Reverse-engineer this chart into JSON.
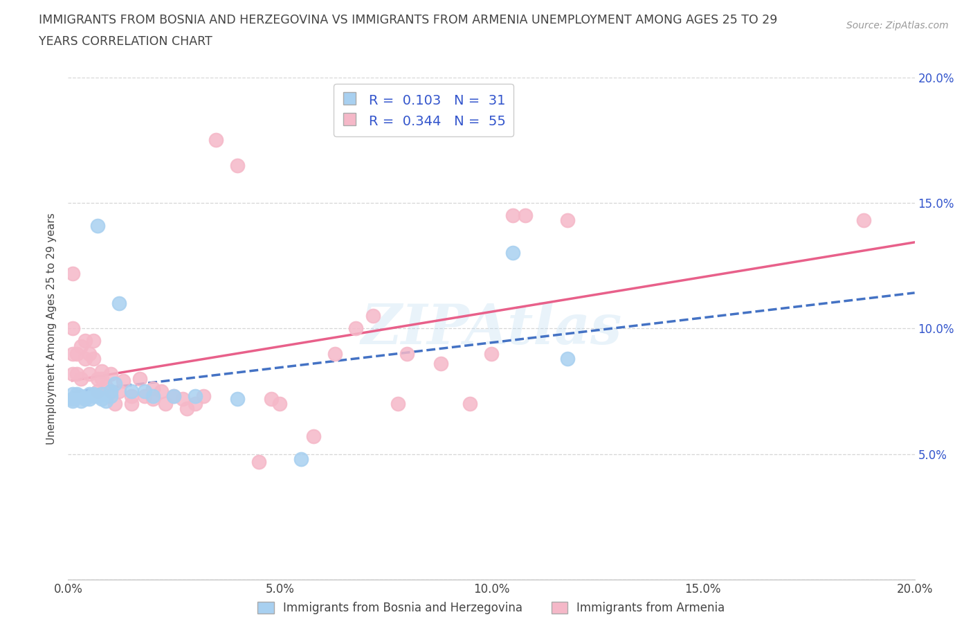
{
  "title_line1": "IMMIGRANTS FROM BOSNIA AND HERZEGOVINA VS IMMIGRANTS FROM ARMENIA UNEMPLOYMENT AMONG AGES 25 TO 29",
  "title_line2": "YEARS CORRELATION CHART",
  "source": "Source: ZipAtlas.com",
  "ylabel": "Unemployment Among Ages 25 to 29 years",
  "xlim": [
    0.0,
    0.2
  ],
  "ylim": [
    0.0,
    0.2
  ],
  "xticks": [
    0.0,
    0.05,
    0.1,
    0.15,
    0.2
  ],
  "yticks": [
    0.0,
    0.05,
    0.1,
    0.15,
    0.2
  ],
  "xtick_labels": [
    "0.0%",
    "5.0%",
    "10.0%",
    "15.0%",
    "20.0%"
  ],
  "ytick_labels_right": [
    "",
    "5.0%",
    "10.0%",
    "15.0%",
    "20.0%"
  ],
  "watermark": "ZIPAtlas",
  "bosnia_color": "#A8D0F0",
  "armenia_color": "#F5B8C8",
  "bosnia_line_color": "#4472C4",
  "armenia_line_color": "#E8608A",
  "legend_text_color": "#3355CC",
  "bosnia_R": 0.103,
  "bosnia_N": 31,
  "armenia_R": 0.344,
  "armenia_N": 55,
  "legend_label_1": "Immigrants from Bosnia and Herzegovina",
  "legend_label_2": "Immigrants from Armenia",
  "grid_color": "#CCCCCC",
  "background_color": "#FFFFFF",
  "text_color": "#444444",
  "bosnia_x": [
    0.001,
    0.001,
    0.001,
    0.001,
    0.002,
    0.002,
    0.003,
    0.003,
    0.004,
    0.005,
    0.005,
    0.006,
    0.006,
    0.007,
    0.007,
    0.008,
    0.008,
    0.009,
    0.01,
    0.01,
    0.011,
    0.012,
    0.015,
    0.018,
    0.02,
    0.025,
    0.03,
    0.04,
    0.055,
    0.105,
    0.118
  ],
  "bosnia_y": [
    0.072,
    0.074,
    0.072,
    0.071,
    0.073,
    0.074,
    0.071,
    0.073,
    0.072,
    0.072,
    0.074,
    0.074,
    0.073,
    0.141,
    0.073,
    0.072,
    0.074,
    0.071,
    0.073,
    0.075,
    0.078,
    0.11,
    0.075,
    0.075,
    0.073,
    0.073,
    0.073,
    0.072,
    0.048,
    0.13,
    0.088
  ],
  "armenia_x": [
    0.001,
    0.001,
    0.001,
    0.001,
    0.002,
    0.002,
    0.003,
    0.003,
    0.004,
    0.004,
    0.005,
    0.005,
    0.006,
    0.006,
    0.007,
    0.007,
    0.008,
    0.008,
    0.009,
    0.01,
    0.01,
    0.011,
    0.012,
    0.013,
    0.015,
    0.015,
    0.017,
    0.018,
    0.02,
    0.02,
    0.022,
    0.023,
    0.025,
    0.027,
    0.028,
    0.03,
    0.032,
    0.035,
    0.04,
    0.045,
    0.048,
    0.05,
    0.058,
    0.063,
    0.068,
    0.072,
    0.078,
    0.08,
    0.088,
    0.095,
    0.1,
    0.105,
    0.108,
    0.118,
    0.188
  ],
  "armenia_y": [
    0.122,
    0.1,
    0.09,
    0.082,
    0.09,
    0.082,
    0.093,
    0.08,
    0.088,
    0.095,
    0.09,
    0.082,
    0.088,
    0.095,
    0.075,
    0.08,
    0.083,
    0.08,
    0.077,
    0.082,
    0.075,
    0.07,
    0.075,
    0.079,
    0.07,
    0.073,
    0.08,
    0.073,
    0.072,
    0.076,
    0.075,
    0.07,
    0.073,
    0.072,
    0.068,
    0.07,
    0.073,
    0.175,
    0.165,
    0.047,
    0.072,
    0.07,
    0.057,
    0.09,
    0.1,
    0.105,
    0.07,
    0.09,
    0.086,
    0.07,
    0.09,
    0.145,
    0.145,
    0.143,
    0.143
  ]
}
